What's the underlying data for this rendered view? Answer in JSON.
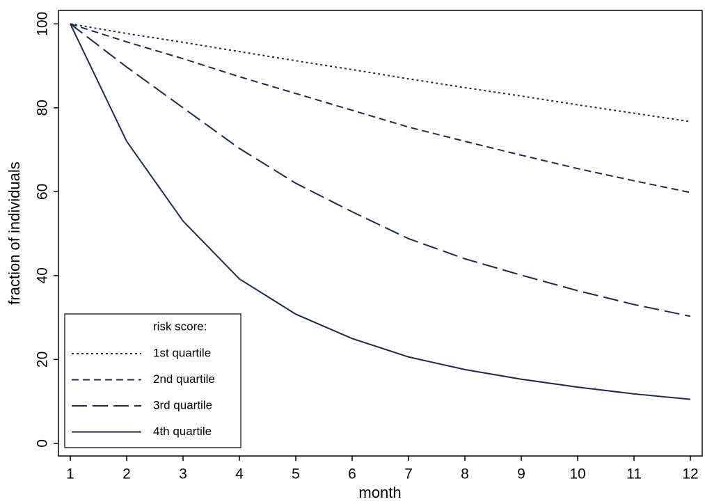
{
  "chart_data": {
    "type": "line",
    "x": [
      1,
      2,
      3,
      4,
      5,
      6,
      7,
      8,
      9,
      10,
      11,
      12
    ],
    "xlim": [
      0.79,
      12.21
    ],
    "xticks": [
      1,
      2,
      3,
      4,
      5,
      6,
      7,
      8,
      9,
      10,
      11,
      12
    ],
    "ylim": [
      -3,
      103.2
    ],
    "yticks": [
      0,
      20,
      40,
      60,
      80,
      100
    ],
    "x_label": "month",
    "y_label": "fraction of individuals",
    "legend_title": "risk score:",
    "legend_position": "lower left",
    "series": [
      {
        "name": "1st quartile",
        "color": "#1c2a4a",
        "dash": "dotted",
        "values": [
          100,
          97.7,
          95.6,
          93.4,
          91.2,
          89.1,
          86.9,
          84.8,
          82.8,
          80.7,
          78.7,
          76.7
        ]
      },
      {
        "name": "2nd quartile",
        "color": "#1c2a4a",
        "dash": "short-dash",
        "values": [
          100,
          95.7,
          91.7,
          87.4,
          83.4,
          79.4,
          75.4,
          72.0,
          68.7,
          65.5,
          62.6,
          59.8
        ]
      },
      {
        "name": "3rd quartile",
        "color": "#1c2a4a",
        "dash": "long-dash",
        "values": [
          100,
          89.7,
          80.0,
          70.3,
          62.0,
          55.2,
          48.8,
          44.0,
          40.1,
          36.4,
          33.1,
          30.3
        ]
      },
      {
        "name": "4th quartile",
        "color": "#1c2a4a",
        "dash": "solid",
        "values": [
          100,
          72.0,
          53.0,
          39.2,
          30.8,
          25.0,
          20.6,
          17.6,
          15.3,
          13.4,
          11.8,
          10.5
        ]
      }
    ]
  }
}
